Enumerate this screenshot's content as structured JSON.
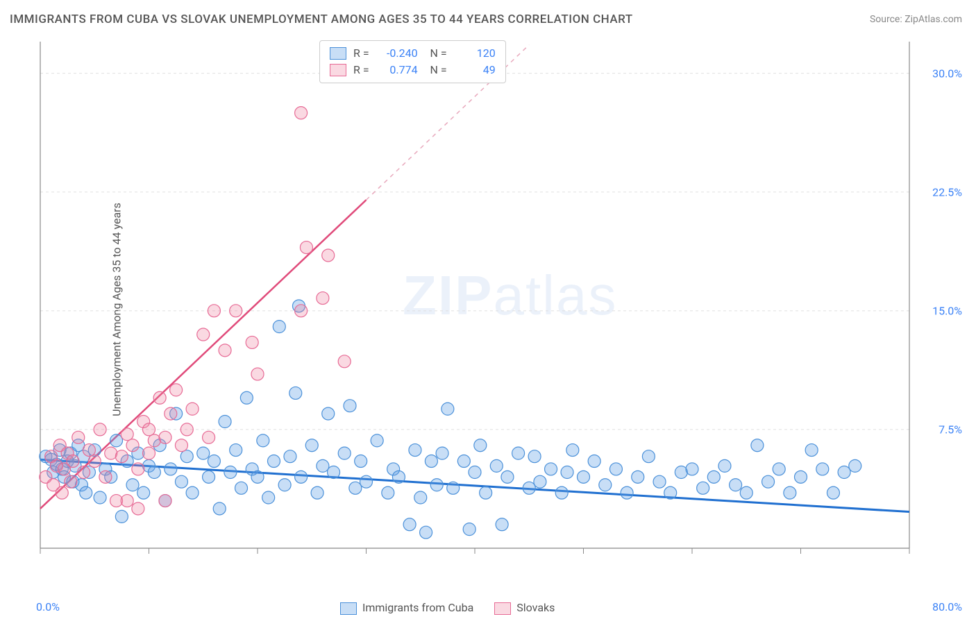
{
  "title": "IMMIGRANTS FROM CUBA VS SLOVAK UNEMPLOYMENT AMONG AGES 35 TO 44 YEARS CORRELATION CHART",
  "source": "Source: ZipAtlas.com",
  "ylabel": "Unemployment Among Ages 35 to 44 years",
  "watermark_a": "ZIP",
  "watermark_b": "atlas",
  "chart": {
    "type": "scatter",
    "background_color": "#ffffff",
    "grid_color": "#e0e0e0",
    "axis_color": "#888888",
    "xlim": [
      0,
      80
    ],
    "ylim": [
      0,
      32
    ],
    "x_tick_positions": [
      0,
      10,
      20,
      30,
      40,
      50,
      60,
      70,
      80
    ],
    "x_labels": {
      "min": "0.0%",
      "max": "80.0%"
    },
    "y_ticks": [
      {
        "v": 7.5,
        "label": "7.5%"
      },
      {
        "v": 15.0,
        "label": "15.0%"
      },
      {
        "v": 22.5,
        "label": "22.5%"
      },
      {
        "v": 30.0,
        "label": "30.0%"
      }
    ],
    "series": [
      {
        "name": "Immigrants from Cuba",
        "color_fill": "rgba(96,160,230,0.35)",
        "color_stroke": "#4a90d9",
        "marker_radius": 9,
        "trend": {
          "x1": 0,
          "y1": 5.6,
          "x2": 80,
          "y2": 2.3,
          "color": "#1f6fd0",
          "width": 3,
          "dash": null
        },
        "R": "-0.240",
        "N": "120",
        "points": [
          [
            0.5,
            5.8
          ],
          [
            1.0,
            5.6
          ],
          [
            1.2,
            4.8
          ],
          [
            1.5,
            5.3
          ],
          [
            1.8,
            6.2
          ],
          [
            2.0,
            5.0
          ],
          [
            2.2,
            4.5
          ],
          [
            2.5,
            5.5
          ],
          [
            2.8,
            6.0
          ],
          [
            3.0,
            4.2
          ],
          [
            3.2,
            5.2
          ],
          [
            3.5,
            6.5
          ],
          [
            3.8,
            4.0
          ],
          [
            4.0,
            5.8
          ],
          [
            4.2,
            3.5
          ],
          [
            4.5,
            4.8
          ],
          [
            5.0,
            6.2
          ],
          [
            5.5,
            3.2
          ],
          [
            6.0,
            5.0
          ],
          [
            6.5,
            4.5
          ],
          [
            7.0,
            6.8
          ],
          [
            7.5,
            2.0
          ],
          [
            8.0,
            5.5
          ],
          [
            8.5,
            4.0
          ],
          [
            9.0,
            6.0
          ],
          [
            9.5,
            3.5
          ],
          [
            10.0,
            5.2
          ],
          [
            10.5,
            4.8
          ],
          [
            11.0,
            6.5
          ],
          [
            11.5,
            3.0
          ],
          [
            12.0,
            5.0
          ],
          [
            12.5,
            8.5
          ],
          [
            13.0,
            4.2
          ],
          [
            13.5,
            5.8
          ],
          [
            14.0,
            3.5
          ],
          [
            15.0,
            6.0
          ],
          [
            15.5,
            4.5
          ],
          [
            16.0,
            5.5
          ],
          [
            16.5,
            2.5
          ],
          [
            17.0,
            8.0
          ],
          [
            17.5,
            4.8
          ],
          [
            18.0,
            6.2
          ],
          [
            18.5,
            3.8
          ],
          [
            19.0,
            9.5
          ],
          [
            19.5,
            5.0
          ],
          [
            20.0,
            4.5
          ],
          [
            20.5,
            6.8
          ],
          [
            21.0,
            3.2
          ],
          [
            21.5,
            5.5
          ],
          [
            22.0,
            14.0
          ],
          [
            22.5,
            4.0
          ],
          [
            23.0,
            5.8
          ],
          [
            23.5,
            9.8
          ],
          [
            23.8,
            15.3
          ],
          [
            24.0,
            4.5
          ],
          [
            25.0,
            6.5
          ],
          [
            25.5,
            3.5
          ],
          [
            26.0,
            5.2
          ],
          [
            26.5,
            8.5
          ],
          [
            27.0,
            4.8
          ],
          [
            28.0,
            6.0
          ],
          [
            28.5,
            9.0
          ],
          [
            29.0,
            3.8
          ],
          [
            29.5,
            5.5
          ],
          [
            30.0,
            4.2
          ],
          [
            31.0,
            6.8
          ],
          [
            32.0,
            3.5
          ],
          [
            32.5,
            5.0
          ],
          [
            33.0,
            4.5
          ],
          [
            34.0,
            1.5
          ],
          [
            34.5,
            6.2
          ],
          [
            35.0,
            3.2
          ],
          [
            35.5,
            1.0
          ],
          [
            36.0,
            5.5
          ],
          [
            36.5,
            4.0
          ],
          [
            37.0,
            6.0
          ],
          [
            37.5,
            8.8
          ],
          [
            38.0,
            3.8
          ],
          [
            39.0,
            5.5
          ],
          [
            39.5,
            1.2
          ],
          [
            40.0,
            4.8
          ],
          [
            40.5,
            6.5
          ],
          [
            41.0,
            3.5
          ],
          [
            42.0,
            5.2
          ],
          [
            42.5,
            1.5
          ],
          [
            43.0,
            4.5
          ],
          [
            44.0,
            6.0
          ],
          [
            45.0,
            3.8
          ],
          [
            45.5,
            5.8
          ],
          [
            46.0,
            4.2
          ],
          [
            47.0,
            5.0
          ],
          [
            48.0,
            3.5
          ],
          [
            48.5,
            4.8
          ],
          [
            49.0,
            6.2
          ],
          [
            50.0,
            4.5
          ],
          [
            51.0,
            5.5
          ],
          [
            52.0,
            4.0
          ],
          [
            53.0,
            5.0
          ],
          [
            54.0,
            3.5
          ],
          [
            55.0,
            4.5
          ],
          [
            56.0,
            5.8
          ],
          [
            57.0,
            4.2
          ],
          [
            58.0,
            3.5
          ],
          [
            59.0,
            4.8
          ],
          [
            60.0,
            5.0
          ],
          [
            61.0,
            3.8
          ],
          [
            62.0,
            4.5
          ],
          [
            63.0,
            5.2
          ],
          [
            64.0,
            4.0
          ],
          [
            65.0,
            3.5
          ],
          [
            66.0,
            6.5
          ],
          [
            67.0,
            4.2
          ],
          [
            68.0,
            5.0
          ],
          [
            69.0,
            3.5
          ],
          [
            70.0,
            4.5
          ],
          [
            71.0,
            6.2
          ],
          [
            72.0,
            5.0
          ],
          [
            73.0,
            3.5
          ],
          [
            74.0,
            4.8
          ],
          [
            75.0,
            5.2
          ]
        ]
      },
      {
        "name": "Slovaks",
        "color_fill": "rgba(240,130,160,0.30)",
        "color_stroke": "#e76a95",
        "marker_radius": 9,
        "trend": {
          "x1": 0,
          "y1": 2.5,
          "x2": 30,
          "y2": 22.0,
          "color": "#e04a7a",
          "width": 2.5,
          "dash": null
        },
        "trend_extend": {
          "x1": 30,
          "y1": 22.0,
          "x2": 45,
          "y2": 31.8,
          "color": "#e8a8bc",
          "width": 1.5,
          "dash": "6,6"
        },
        "R": "0.774",
        "N": "49",
        "points": [
          [
            0.5,
            4.5
          ],
          [
            1.0,
            5.8
          ],
          [
            1.2,
            4.0
          ],
          [
            1.5,
            5.2
          ],
          [
            1.8,
            6.5
          ],
          [
            2.0,
            3.5
          ],
          [
            2.2,
            5.0
          ],
          [
            2.5,
            6.0
          ],
          [
            2.8,
            4.2
          ],
          [
            3.0,
            5.5
          ],
          [
            3.5,
            7.0
          ],
          [
            4.0,
            4.8
          ],
          [
            4.5,
            6.2
          ],
          [
            5.0,
            5.5
          ],
          [
            5.5,
            7.5
          ],
          [
            6.0,
            4.5
          ],
          [
            6.5,
            6.0
          ],
          [
            7.0,
            3.0
          ],
          [
            7.5,
            5.8
          ],
          [
            8.0,
            7.2
          ],
          [
            8.5,
            6.5
          ],
          [
            9.0,
            5.0
          ],
          [
            9.5,
            8.0
          ],
          [
            10.0,
            7.5
          ],
          [
            10.5,
            6.8
          ],
          [
            11.0,
            9.5
          ],
          [
            11.5,
            7.0
          ],
          [
            12.0,
            8.5
          ],
          [
            12.5,
            10.0
          ],
          [
            13.0,
            6.5
          ],
          [
            13.5,
            7.5
          ],
          [
            14.0,
            8.8
          ],
          [
            15.0,
            13.5
          ],
          [
            15.5,
            7.0
          ],
          [
            16.0,
            15.0
          ],
          [
            17.0,
            12.5
          ],
          [
            18.0,
            15.0
          ],
          [
            19.5,
            13.0
          ],
          [
            20.0,
            11.0
          ],
          [
            24.0,
            15.0
          ],
          [
            24.5,
            19.0
          ],
          [
            26.0,
            15.8
          ],
          [
            26.5,
            18.5
          ],
          [
            28.0,
            11.8
          ],
          [
            24.0,
            27.5
          ],
          [
            8.0,
            3.0
          ],
          [
            9.0,
            2.5
          ],
          [
            10.0,
            6.0
          ],
          [
            11.5,
            3.0
          ]
        ]
      }
    ],
    "legend_bottom": [
      {
        "label": "Immigrants from Cuba",
        "fill": "rgba(96,160,230,0.35)",
        "stroke": "#4a90d9"
      },
      {
        "label": "Slovaks",
        "fill": "rgba(240,130,160,0.30)",
        "stroke": "#e76a95"
      }
    ]
  }
}
